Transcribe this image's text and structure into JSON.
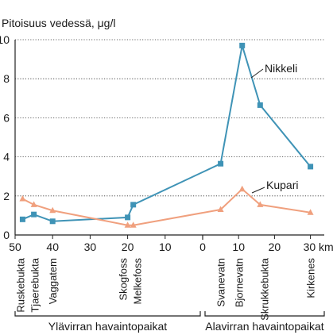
{
  "chart_data": {
    "type": "line",
    "ylabel": "Pitoisuus vedessä, μg/l",
    "ylim": [
      0,
      10
    ],
    "y_ticks": [
      "0",
      "2",
      "4",
      "6",
      "8",
      "10"
    ],
    "x_ticks_left": [
      "50",
      "40",
      "30",
      "20",
      "10",
      "0"
    ],
    "x_ticks_right": [
      "10",
      "20",
      "30 km"
    ],
    "grid": "horizontal-dotted",
    "series": [
      {
        "name": "Nikkeli",
        "color": "#3f93b6",
        "marker": "square",
        "points": [
          {
            "site": 0,
            "y": 0.8
          },
          {
            "site": 1,
            "y": 1.05
          },
          {
            "site": 2,
            "y": 0.7
          },
          {
            "site": 3,
            "y": 0.9
          },
          {
            "site": 4,
            "y": 1.55
          },
          {
            "site": 5,
            "y": 3.65
          },
          {
            "site": 6,
            "y": 9.7
          },
          {
            "site": 7,
            "y": 6.65
          },
          {
            "site": 8,
            "y": 3.5
          }
        ]
      },
      {
        "name": "Kupari",
        "color": "#f0a07e",
        "marker": "triangle",
        "points": [
          {
            "site": 0,
            "y": 1.85
          },
          {
            "site": 1,
            "y": 1.55
          },
          {
            "site": 2,
            "y": 1.25
          },
          {
            "site": 3,
            "y": 0.5
          },
          {
            "site": 4,
            "y": 0.5
          },
          {
            "site": 5,
            "y": 1.3
          },
          {
            "site": 6,
            "y": 2.35
          },
          {
            "site": 7,
            "y": 1.55
          },
          {
            "site": 8,
            "y": 1.15
          }
        ]
      }
    ],
    "sites": [
      {
        "name": "Ruskebukta",
        "side": "upstream",
        "km": 48
      },
      {
        "name": "Tjaerebukta",
        "side": "upstream",
        "km": 45
      },
      {
        "name": "Vaggatem",
        "side": "upstream",
        "km": 40
      },
      {
        "name": "Skogfoss",
        "side": "upstream",
        "km": 20
      },
      {
        "name": "Melkefoss",
        "side": "upstream",
        "km": 18.5
      },
      {
        "name": "Svanevatn",
        "side": "downstream",
        "km": 5
      },
      {
        "name": "Bjornevatn",
        "side": "downstream",
        "km": 11
      },
      {
        "name": "Skrukkebukta",
        "side": "downstream",
        "km": 16
      },
      {
        "name": "Kirkenes",
        "side": "downstream",
        "km": 30
      }
    ],
    "groups": [
      {
        "label": "Ylävirran havaintopaikat"
      },
      {
        "label": "Alavirran havaintopaikat"
      }
    ]
  }
}
